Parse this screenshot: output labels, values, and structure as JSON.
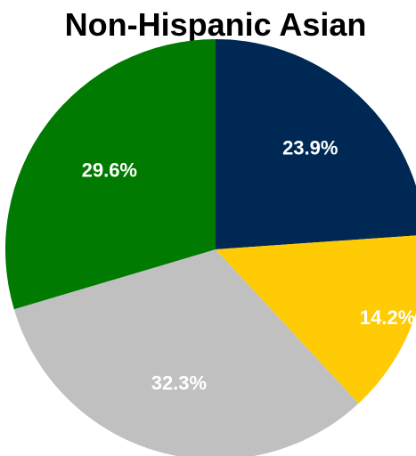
{
  "chart_data": {
    "type": "pie",
    "title": "Non-Hispanic Asian",
    "slices": [
      {
        "value": 23.9,
        "label": "23.9%",
        "color": "#002855"
      },
      {
        "value": 14.2,
        "label": "14.2%",
        "color": "#FFCB05"
      },
      {
        "value": 32.3,
        "label": "32.3%",
        "color": "#C0C0C0"
      },
      {
        "value": 29.6,
        "label": "29.6%",
        "color": "#007A00"
      }
    ],
    "start_angle_deg": 0,
    "direction": "clockwise"
  }
}
